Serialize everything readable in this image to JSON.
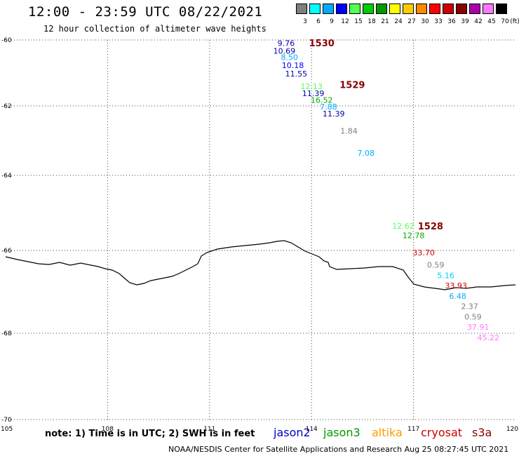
{
  "header": {
    "title": "12:00 - 23:59 UTC 08/22/2021",
    "subtitle": "12 hour collection of altimeter wave heights"
  },
  "legend": {
    "bins": [
      {
        "label": "3",
        "color": "#7f7f7f"
      },
      {
        "label": "6",
        "color": "#00ffff"
      },
      {
        "label": "9",
        "color": "#00aaff"
      },
      {
        "label": "12",
        "color": "#0000ff"
      },
      {
        "label": "15",
        "color": "#55ff55"
      },
      {
        "label": "18",
        "color": "#00cc00"
      },
      {
        "label": "21",
        "color": "#009900"
      },
      {
        "label": "24",
        "color": "#ffff00"
      },
      {
        "label": "27",
        "color": "#ffcc00"
      },
      {
        "label": "30",
        "color": "#ff8800"
      },
      {
        "label": "33",
        "color": "#ff0000"
      },
      {
        "label": "36",
        "color": "#cc0000"
      },
      {
        "label": "39",
        "color": "#880000"
      },
      {
        "label": "42",
        "color": "#aa00aa"
      },
      {
        "label": "45",
        "color": "#ff77ff"
      },
      {
        "label": "70",
        "color": "#000000"
      }
    ],
    "unit": "(ft)"
  },
  "axes": {
    "lon_ticks": [
      "105",
      "108",
      "111",
      "114",
      "117",
      "120"
    ],
    "lat_ticks": [
      "-60",
      "-62",
      "-64",
      "-66",
      "-68",
      "-70"
    ]
  },
  "tracks": [
    {
      "id": "1530",
      "lon": 114.3,
      "lat": -60.08,
      "color": "#880000"
    },
    {
      "id": "1529",
      "lon": 115.2,
      "lat": -61.35,
      "color": "#880000"
    },
    {
      "id": "1528",
      "lon": 117.5,
      "lat": -65.35,
      "color": "#880000"
    }
  ],
  "points": [
    {
      "text": "9.76",
      "lon": 113.25,
      "lat": -60.1,
      "color": "#0000aa"
    },
    {
      "text": "10.69",
      "lon": 113.2,
      "lat": -60.33,
      "color": "#0000aa"
    },
    {
      "text": "8.50",
      "lon": 113.35,
      "lat": -60.52,
      "color": "#00aaff"
    },
    {
      "text": "10.18",
      "lon": 113.45,
      "lat": -60.77,
      "color": "#0000ff"
    },
    {
      "text": "11.55",
      "lon": 113.55,
      "lat": -61.02,
      "color": "#0000aa"
    },
    {
      "text": "12.13",
      "lon": 114.0,
      "lat": -61.4,
      "color": "#55ff55"
    },
    {
      "text": "11.39",
      "lon": 114.05,
      "lat": -61.62,
      "color": "#0000aa"
    },
    {
      "text": "16.52",
      "lon": 114.3,
      "lat": -61.82,
      "color": "#00aa00"
    },
    {
      "text": "7.88",
      "lon": 114.5,
      "lat": -62.02,
      "color": "#00aaff"
    },
    {
      "text": "11.39",
      "lon": 114.65,
      "lat": -62.22,
      "color": "#0000aa"
    },
    {
      "text": "1.84",
      "lon": 115.1,
      "lat": -62.72,
      "color": "#7f7f7f"
    },
    {
      "text": "7.08",
      "lon": 115.6,
      "lat": -63.35,
      "color": "#00aaff"
    },
    {
      "text": "12.62",
      "lon": 116.7,
      "lat": -65.35,
      "color": "#55ff55"
    },
    {
      "text": "12.78",
      "lon": 117.0,
      "lat": -65.6,
      "color": "#00aa00"
    },
    {
      "text": "33.70",
      "lon": 117.3,
      "lat": -66.05,
      "color": "#cc0000"
    },
    {
      "text": "0.59",
      "lon": 117.65,
      "lat": -66.35,
      "color": "#7f7f7f"
    },
    {
      "text": "5.16",
      "lon": 117.95,
      "lat": -66.6,
      "color": "#00ccff"
    },
    {
      "text": "33.93",
      "lon": 118.25,
      "lat": -66.85,
      "color": "#cc0000"
    },
    {
      "text": "6.48",
      "lon": 118.3,
      "lat": -67.1,
      "color": "#00aaff"
    },
    {
      "text": "2.37",
      "lon": 118.65,
      "lat": -67.35,
      "color": "#7f7f7f"
    },
    {
      "text": "0.59",
      "lon": 118.75,
      "lat": -67.6,
      "color": "#7f7f7f"
    },
    {
      "text": "37.91",
      "lon": 118.9,
      "lat": -67.85,
      "color": "#ff77ff"
    },
    {
      "text": "45.22",
      "lon": 119.2,
      "lat": -68.1,
      "color": "#ff77ff"
    }
  ],
  "note": "note: 1) Time is in UTC; 2) SWH is in feet",
  "satellites": [
    {
      "name": "jason2",
      "color": "#0000cc"
    },
    {
      "name": "jason3",
      "color": "#009900"
    },
    {
      "name": "altika",
      "color": "#ff9900"
    },
    {
      "name": "cryosat",
      "color": "#cc0000"
    },
    {
      "name": "s3a",
      "color": "#880000"
    }
  ],
  "footer": "NOAA/NESDIS Center for Satellite Applications and Research    Aug 25 08:27:45 UTC 2021"
}
